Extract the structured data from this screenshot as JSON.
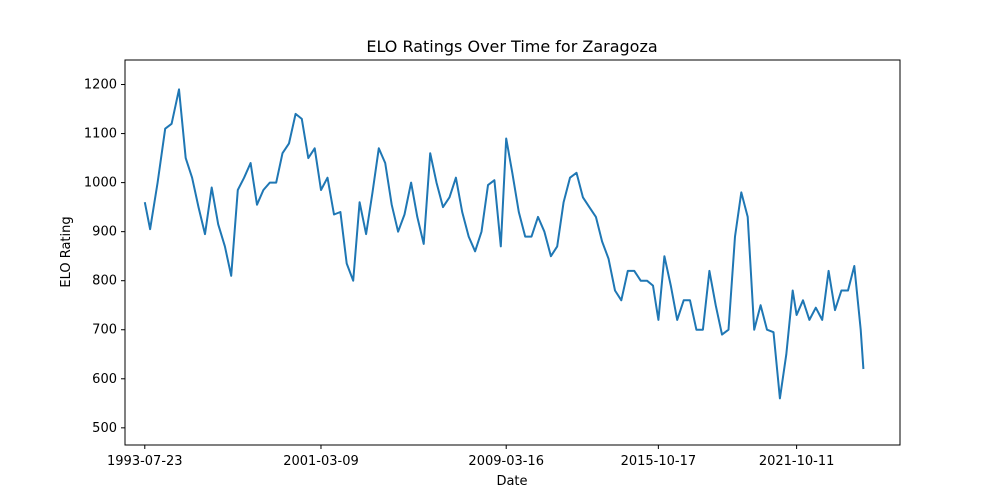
{
  "chart_data": {
    "type": "line",
    "title": "ELO Ratings Over Time for Zaragoza",
    "xlabel": "Date",
    "ylabel": "ELO Rating",
    "xlim": [
      "1992-09-13",
      "2026-04-03"
    ],
    "ylim": [
      465,
      1250
    ],
    "x_ticks": [
      "1993-07-23",
      "2001-03-09",
      "2009-03-16",
      "2015-10-17",
      "2021-10-11"
    ],
    "y_ticks": [
      500,
      600,
      700,
      800,
      900,
      1000,
      1100,
      1200
    ],
    "grid": false,
    "legend": "none",
    "series": [
      {
        "color": "#1f77b4",
        "x": [
          "1993-07-23",
          "1993-10-15",
          "1994-02-10",
          "1994-06-10",
          "1994-09-20",
          "1995-01-15",
          "1995-05-01",
          "1995-08-10",
          "1995-11-20",
          "1996-03-01",
          "1996-06-15",
          "1996-09-25",
          "1997-01-10",
          "1997-04-20",
          "1997-08-01",
          "1997-11-10",
          "1998-02-20",
          "1998-06-01",
          "1998-09-10",
          "1998-12-20",
          "1999-04-01",
          "1999-07-10",
          "1999-10-20",
          "2000-02-01",
          "2000-05-10",
          "2000-08-20",
          "2000-11-30",
          "2001-03-09",
          "2001-06-20",
          "2001-10-01",
          "2002-01-10",
          "2002-04-20",
          "2002-08-01",
          "2002-11-10",
          "2003-02-20",
          "2003-06-01",
          "2003-09-10",
          "2003-12-20",
          "2004-04-01",
          "2004-07-10",
          "2004-10-20",
          "2005-02-01",
          "2005-05-10",
          "2005-08-20",
          "2005-11-30",
          "2006-03-10",
          "2006-06-20",
          "2006-10-01",
          "2007-01-10",
          "2007-04-20",
          "2007-08-01",
          "2007-11-10",
          "2008-02-20",
          "2008-06-01",
          "2008-09-10",
          "2008-12-20",
          "2009-03-16",
          "2009-06-20",
          "2009-10-01",
          "2010-01-10",
          "2010-04-20",
          "2010-08-01",
          "2010-11-10",
          "2011-02-20",
          "2011-06-01",
          "2011-09-10",
          "2011-12-20",
          "2012-04-01",
          "2012-07-10",
          "2012-10-20",
          "2013-02-01",
          "2013-05-10",
          "2013-08-20",
          "2013-11-30",
          "2014-03-10",
          "2014-06-20",
          "2014-10-01",
          "2015-01-10",
          "2015-04-20",
          "2015-07-25",
          "2015-10-17",
          "2016-01-20",
          "2016-05-01",
          "2016-08-10",
          "2016-11-20",
          "2017-03-01",
          "2017-06-10",
          "2017-09-20",
          "2018-01-01",
          "2018-04-10",
          "2018-07-20",
          "2018-10-30",
          "2019-02-10",
          "2019-05-20",
          "2019-08-30",
          "2019-12-10",
          "2020-03-20",
          "2020-06-30",
          "2020-10-10",
          "2021-01-20",
          "2021-05-01",
          "2021-08-10",
          "2021-10-11",
          "2022-01-20",
          "2022-05-01",
          "2022-08-10",
          "2022-11-20",
          "2023-03-01",
          "2023-06-10",
          "2023-09-20",
          "2024-01-01",
          "2024-04-10",
          "2024-07-20",
          "2024-09-01"
        ],
        "values": [
          960,
          905,
          1000,
          1110,
          1120,
          1190,
          1050,
          1010,
          950,
          895,
          990,
          915,
          870,
          810,
          985,
          1010,
          1040,
          955,
          985,
          1000,
          1000,
          1060,
          1080,
          1140,
          1130,
          1050,
          1070,
          985,
          1010,
          935,
          940,
          835,
          800,
          960,
          895,
          980,
          1070,
          1040,
          955,
          900,
          935,
          1000,
          930,
          875,
          1060,
          1000,
          950,
          970,
          1010,
          940,
          890,
          860,
          900,
          995,
          1005,
          870,
          1090,
          1020,
          940,
          890,
          890,
          930,
          900,
          850,
          870,
          960,
          1010,
          1020,
          970,
          950,
          930,
          880,
          845,
          780,
          760,
          820,
          820,
          800,
          800,
          790,
          720,
          850,
          790,
          720,
          760,
          760,
          700,
          700,
          820,
          750,
          690,
          700,
          890,
          980,
          930,
          700,
          750,
          700,
          695,
          560,
          650,
          780,
          730,
          760,
          720,
          745,
          720,
          820,
          740,
          780,
          780,
          830,
          700,
          620
        ]
      }
    ]
  }
}
